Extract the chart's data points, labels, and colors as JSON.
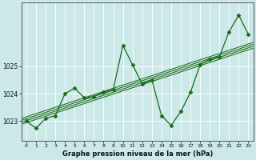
{
  "x": [
    0,
    1,
    2,
    3,
    4,
    5,
    6,
    7,
    8,
    9,
    10,
    11,
    12,
    13,
    14,
    15,
    16,
    17,
    18,
    19,
    20,
    21,
    22,
    23
  ],
  "pressure": [
    1023.0,
    1022.75,
    1023.1,
    1023.2,
    1024.0,
    1024.2,
    1023.85,
    1023.9,
    1024.05,
    1024.15,
    1025.75,
    1025.05,
    1024.35,
    1024.5,
    1023.2,
    1022.85,
    1023.35,
    1024.05,
    1025.05,
    1025.25,
    1025.35,
    1026.25,
    1026.85,
    1026.15
  ],
  "bg_color": "#cce8e8",
  "line_color": "#1a6b1a",
  "grid_color": "#aacccc",
  "title": "Graphe pression niveau de la mer (hPa)",
  "ylim": [
    1022.3,
    1027.3
  ],
  "xlim": [
    -0.5,
    23.5
  ],
  "yticks": [
    1023,
    1024,
    1025
  ],
  "xticks": [
    0,
    1,
    2,
    3,
    4,
    5,
    6,
    7,
    8,
    9,
    10,
    11,
    12,
    13,
    14,
    15,
    16,
    17,
    18,
    19,
    20,
    21,
    22,
    23
  ],
  "trend_offsets": [
    -0.07,
    0.0,
    0.07,
    0.14
  ],
  "figsize": [
    3.2,
    2.0
  ],
  "dpi": 100
}
